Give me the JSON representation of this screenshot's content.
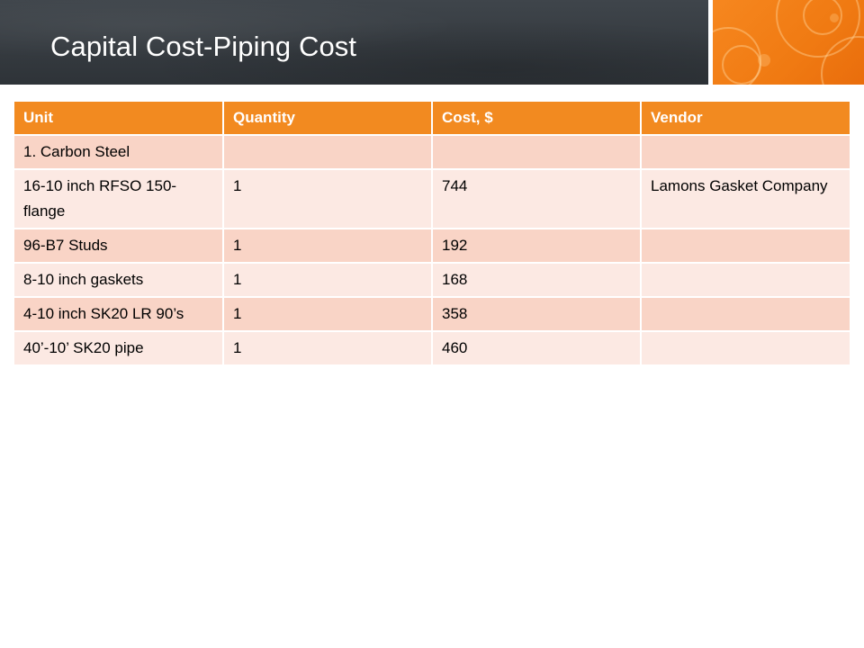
{
  "slide": {
    "title": "Capital Cost-Piping Cost"
  },
  "table": {
    "headers": [
      "Unit",
      "Quantity",
      "Cost, $",
      "Vendor"
    ],
    "rows": [
      [
        "1. Carbon Steel",
        "",
        "",
        ""
      ],
      [
        "16-10 inch RFSO 150-flange",
        "1",
        "744",
        "Lamons Gasket Company"
      ],
      [
        "96-B7 Studs",
        "1",
        "192",
        ""
      ],
      [
        "8-10 inch gaskets",
        "1",
        "168",
        ""
      ],
      [
        "4-10 inch SK20 LR 90’s",
        "1",
        "358",
        ""
      ],
      [
        "40’-10’ SK20 pipe",
        "1",
        "460",
        ""
      ]
    ]
  },
  "colors": {
    "header_bar": "#353a3f",
    "accent_orange": "#f28a20",
    "row_dark": "#f9d4c6",
    "row_light": "#fce9e3"
  }
}
